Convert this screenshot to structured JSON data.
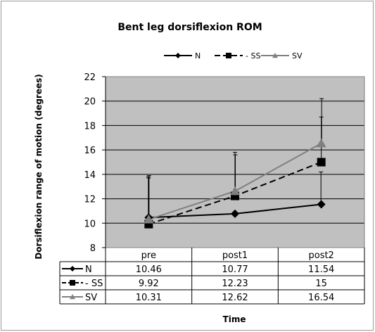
{
  "chart_data": {
    "type": "line",
    "title": "Bent leg dorsiflexion ROM",
    "xlabel": "Time",
    "ylabel": "Dorsiflexion range of motion (degrees)",
    "categories": [
      "pre",
      "post1",
      "post2"
    ],
    "ylim": [
      8,
      22
    ],
    "yticks": [
      8,
      10,
      12,
      14,
      16,
      18,
      20,
      22
    ],
    "grid": true,
    "legend_position": "top",
    "plot_background": "#c0c0c0",
    "error_bars": "positive standard deviation (approximate)",
    "series": [
      {
        "name": "N",
        "values": [
          10.46,
          10.77,
          11.54
        ],
        "marker": "diamond",
        "line": "solid",
        "color": "#000000",
        "error_top": [
          13.8,
          null,
          14.2
        ]
      },
      {
        "name": "SS",
        "legend_label": "- SS",
        "values": [
          9.92,
          12.23,
          15
        ],
        "marker": "square",
        "line": "dashed",
        "color": "#000000",
        "error_top": [
          13.7,
          15.8,
          18.7
        ]
      },
      {
        "name": "SV",
        "values": [
          10.31,
          12.62,
          16.54
        ],
        "marker": "triangle",
        "line": "solid",
        "color": "#808080",
        "error_top": [
          13.9,
          15.6,
          20.2
        ]
      }
    ],
    "table": {
      "rows": [
        {
          "label": "N",
          "values": [
            "10.46",
            "10.77",
            "11.54"
          ]
        },
        {
          "label": "- SS",
          "values": [
            "9.92",
            "12.23",
            "15"
          ]
        },
        {
          "label": "SV",
          "values": [
            "10.31",
            "12.62",
            "16.54"
          ]
        }
      ]
    }
  }
}
